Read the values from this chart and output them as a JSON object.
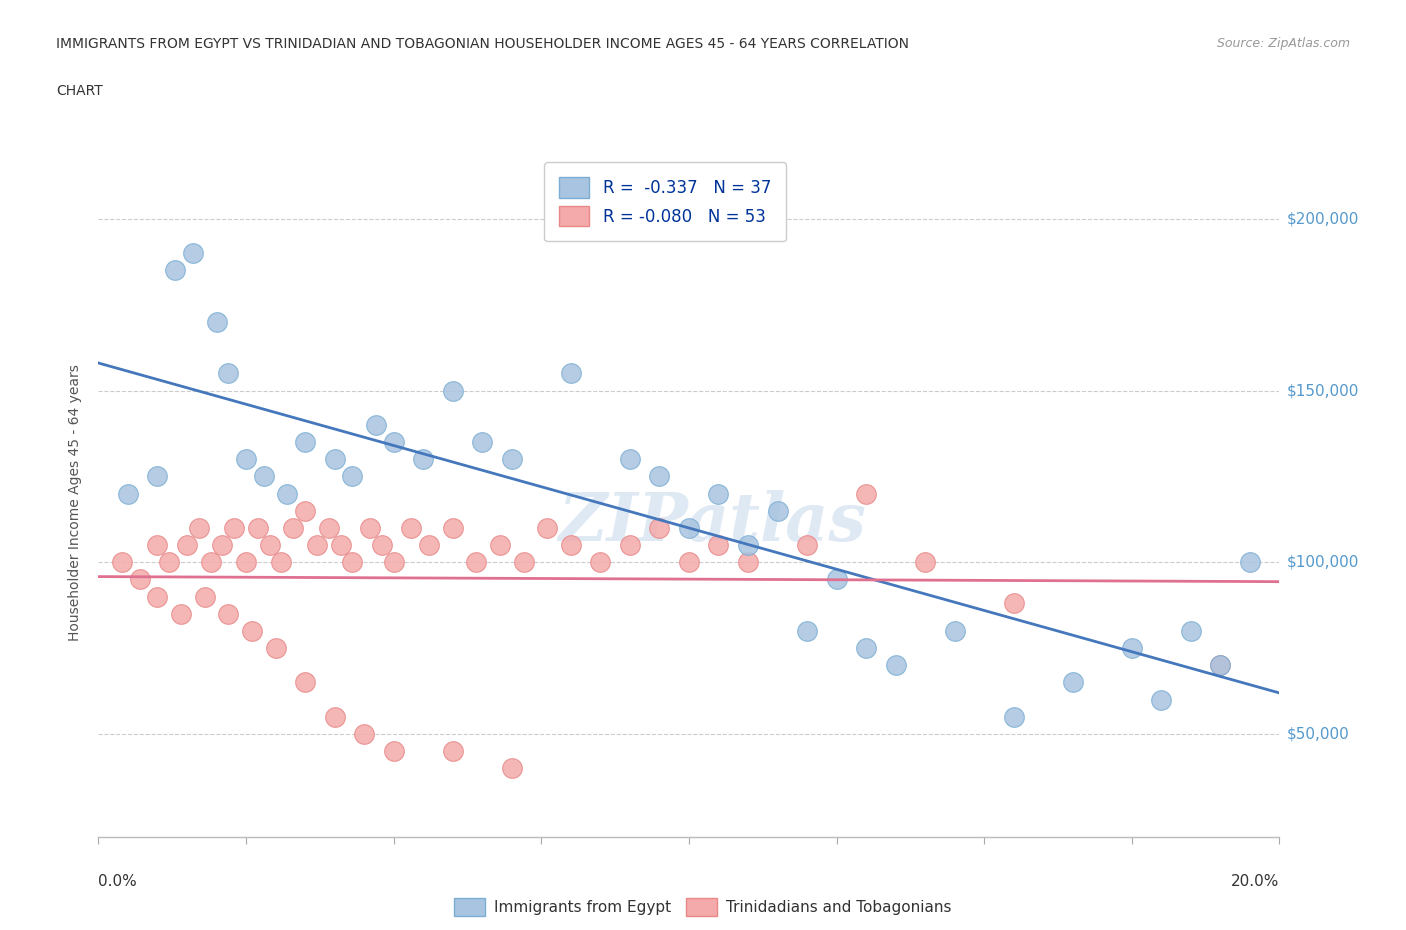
{
  "title_line1": "IMMIGRANTS FROM EGYPT VS TRINIDADIAN AND TOBAGONIAN HOUSEHOLDER INCOME AGES 45 - 64 YEARS CORRELATION",
  "title_line2": "CHART",
  "source": "Source: ZipAtlas.com",
  "ylabel": "Householder Income Ages 45 - 64 years",
  "y_tick_labels": [
    "$50,000",
    "$100,000",
    "$150,000",
    "$200,000"
  ],
  "y_tick_values": [
    50000,
    100000,
    150000,
    200000
  ],
  "xlim": [
    0.0,
    0.2
  ],
  "ylim": [
    20000,
    215000
  ],
  "legend_R1": "R =  -0.337",
  "legend_N1": "N = 37",
  "legend_R2": "R = -0.080",
  "legend_N2": "N = 53",
  "legend_label1": "Immigrants from Egypt",
  "legend_label2": "Trinidadians and Tobagonians",
  "watermark": "ZIPatlas",
  "blue_color": "#A8C4E0",
  "pink_color": "#F4AAAA",
  "blue_edge_color": "#7BAED4",
  "pink_edge_color": "#E88888",
  "blue_line_color": "#4477BB",
  "pink_line_color": "#E07090",
  "egypt_x": [
    0.005,
    0.01,
    0.013,
    0.016,
    0.02,
    0.022,
    0.025,
    0.028,
    0.032,
    0.035,
    0.04,
    0.043,
    0.047,
    0.05,
    0.055,
    0.06,
    0.065,
    0.07,
    0.08,
    0.09,
    0.095,
    0.1,
    0.105,
    0.11,
    0.115,
    0.12,
    0.125,
    0.13,
    0.135,
    0.145,
    0.155,
    0.165,
    0.175,
    0.18,
    0.185,
    0.19,
    0.195
  ],
  "egypt_y": [
    120000,
    125000,
    185000,
    190000,
    170000,
    155000,
    130000,
    125000,
    120000,
    135000,
    130000,
    125000,
    140000,
    135000,
    130000,
    150000,
    135000,
    130000,
    155000,
    130000,
    125000,
    110000,
    120000,
    105000,
    115000,
    80000,
    95000,
    75000,
    70000,
    80000,
    55000,
    65000,
    75000,
    60000,
    80000,
    70000,
    100000
  ],
  "trini_x": [
    0.004,
    0.007,
    0.01,
    0.012,
    0.015,
    0.017,
    0.019,
    0.021,
    0.023,
    0.025,
    0.027,
    0.029,
    0.031,
    0.033,
    0.035,
    0.037,
    0.039,
    0.041,
    0.043,
    0.046,
    0.048,
    0.05,
    0.053,
    0.056,
    0.06,
    0.064,
    0.068,
    0.072,
    0.076,
    0.08,
    0.085,
    0.09,
    0.095,
    0.1,
    0.105,
    0.11,
    0.12,
    0.13,
    0.01,
    0.014,
    0.018,
    0.022,
    0.026,
    0.03,
    0.035,
    0.04,
    0.045,
    0.05,
    0.06,
    0.07,
    0.155,
    0.19,
    0.14
  ],
  "trini_y": [
    100000,
    95000,
    105000,
    100000,
    105000,
    110000,
    100000,
    105000,
    110000,
    100000,
    110000,
    105000,
    100000,
    110000,
    115000,
    105000,
    110000,
    105000,
    100000,
    110000,
    105000,
    100000,
    110000,
    105000,
    110000,
    100000,
    105000,
    100000,
    110000,
    105000,
    100000,
    105000,
    110000,
    100000,
    105000,
    100000,
    105000,
    120000,
    90000,
    85000,
    90000,
    85000,
    80000,
    75000,
    65000,
    55000,
    50000,
    45000,
    45000,
    40000,
    88000,
    70000,
    100000
  ]
}
